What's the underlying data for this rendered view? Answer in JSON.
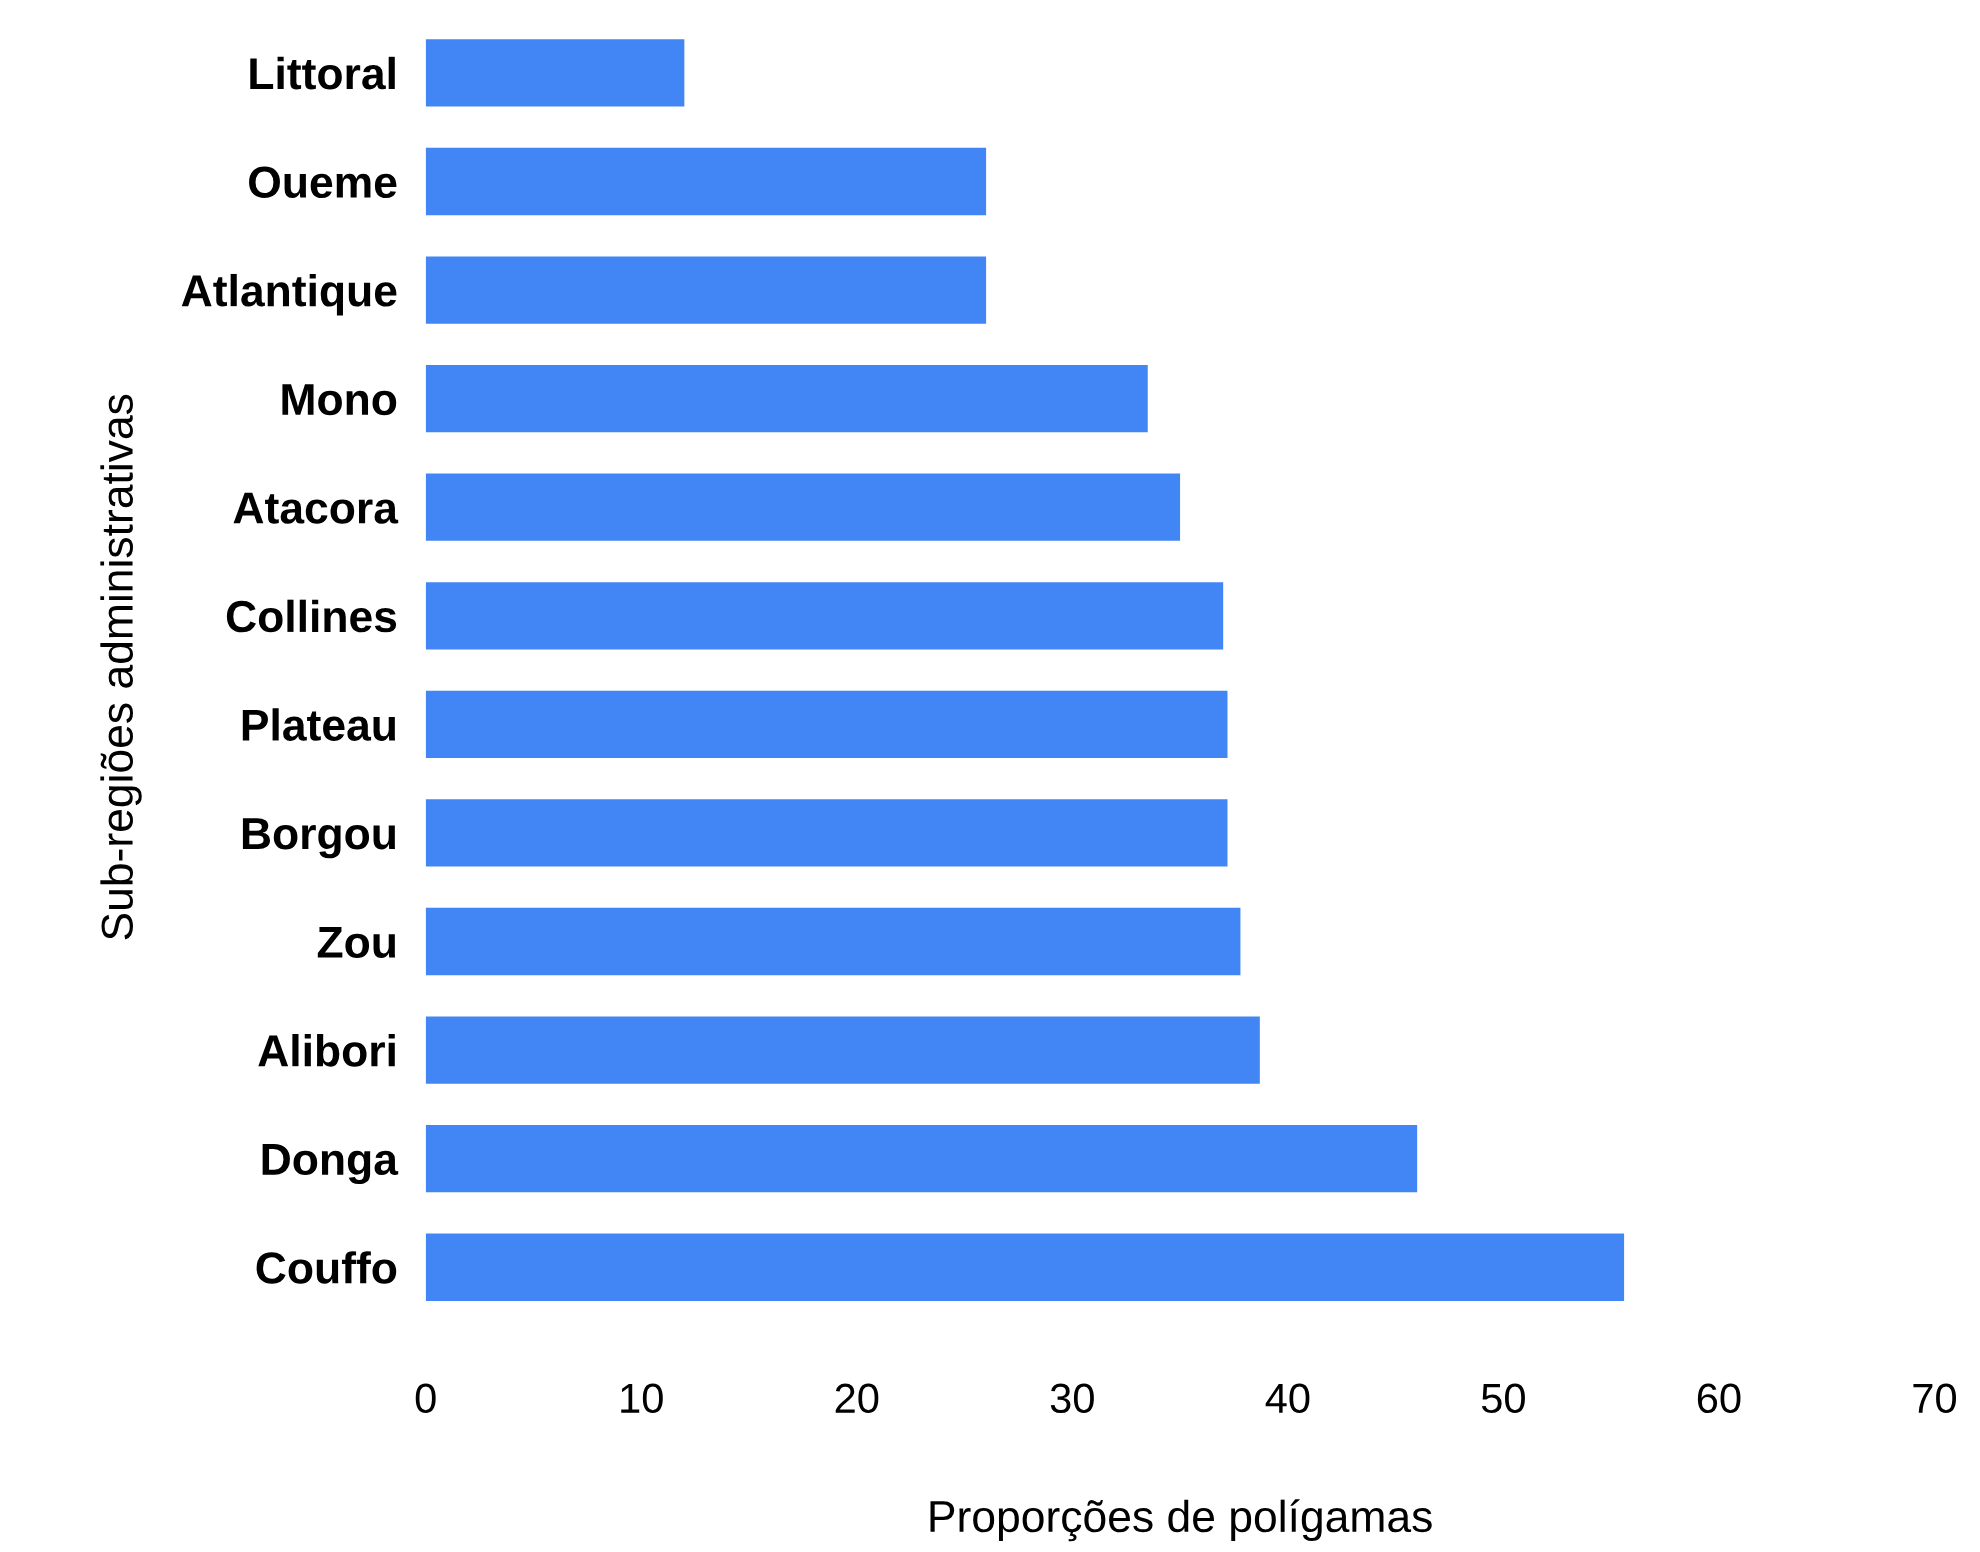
{
  "chart_data": {
    "type": "bar",
    "orientation": "horizontal",
    "xlabel": "Proporções de polígamas",
    "ylabel": "Sub-regiões administrativas",
    "categories": [
      "Littoral",
      "Oueme",
      "Atlantique",
      "Mono",
      "Atacora",
      "Collines",
      "Plateau",
      "Borgou",
      "Zou",
      "Alibori",
      "Donga",
      "Couffo"
    ],
    "values": [
      12,
      26,
      26,
      33.5,
      35,
      37,
      37.2,
      37.2,
      37.8,
      38.7,
      46,
      55.6
    ],
    "color": "#4285f4",
    "xlim": [
      0,
      70
    ],
    "xticks": [
      0,
      10,
      20,
      30,
      40,
      50,
      60,
      70
    ],
    "grid": false,
    "legend": false
  }
}
